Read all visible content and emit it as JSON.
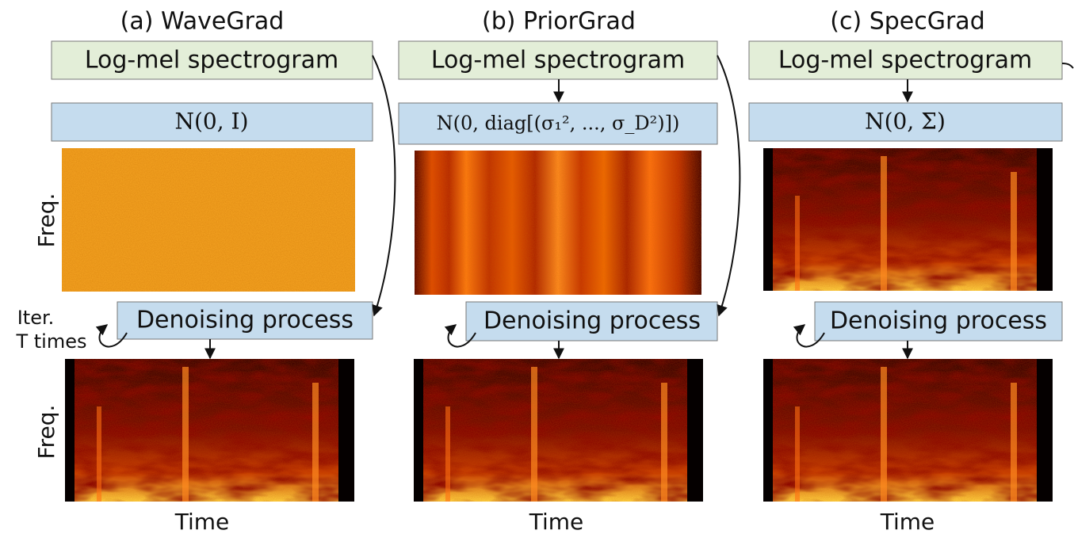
{
  "panels": [
    {
      "title": "(a) WaveGrad",
      "input": "Log-mel spectrogram",
      "noise": "N(0, I)",
      "process": "Denoising process"
    },
    {
      "title": "(b) PriorGrad",
      "input": "Log-mel spectrogram",
      "noise": "N(0, diag[(σ₁², ..., σ_D²)])",
      "process": "Denoising process"
    },
    {
      "title": "(c) SpecGrad",
      "input": "Log-mel spectrogram",
      "noise": "N(0, Σ)",
      "process": "Denoising process"
    }
  ],
  "axis_labels": {
    "freq": "Freq.",
    "time": "Time"
  },
  "loop_label": {
    "line1": "Iter.",
    "line2": "T times"
  }
}
